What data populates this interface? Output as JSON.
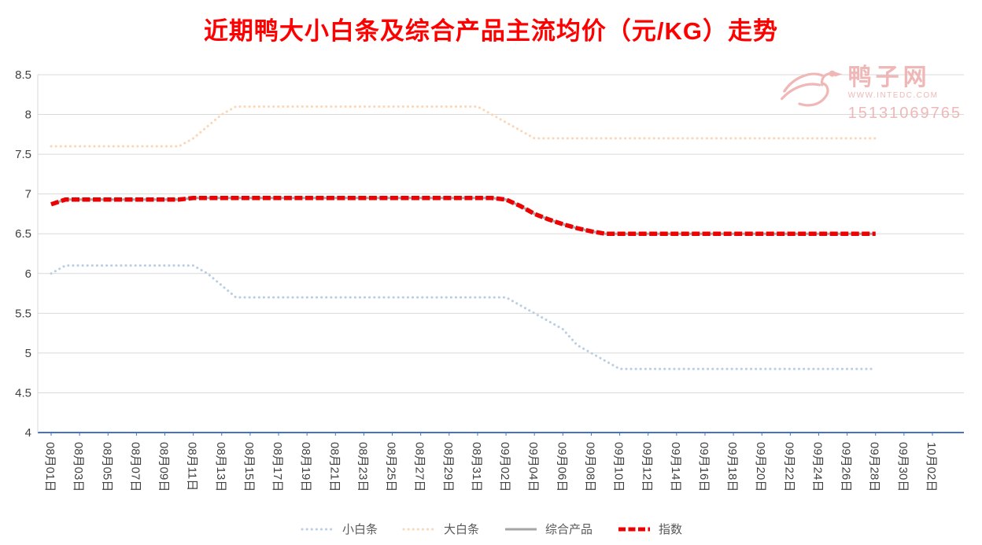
{
  "chart_data": {
    "type": "line",
    "title": "近期鸭大小白条及综合产品主流均价（元/KG）走势",
    "title_color": "#ff0000",
    "ylim": [
      4,
      8.5
    ],
    "ytick_step": 0.5,
    "y_tick_labels": [
      "4",
      "4.5",
      "5",
      "5.5",
      "6",
      "6.5",
      "7",
      "7.5",
      "8",
      "8.5"
    ],
    "x_tick_labels": [
      "08月01日",
      "08月03日",
      "08月05日",
      "08月07日",
      "08月09日",
      "08月11日",
      "08月13日",
      "08月15日",
      "08月17日",
      "08月19日",
      "08月21日",
      "08月23日",
      "08月25日",
      "08月27日",
      "08月29日",
      "08月31日",
      "09月02日",
      "09月04日",
      "09月06日",
      "09月08日",
      "09月10日",
      "09月12日",
      "09月14日",
      "09月16日",
      "09月18日",
      "09月20日",
      "09月22日",
      "09月24日",
      "09月26日",
      "09月28日",
      "09月30日",
      "10月02日"
    ],
    "days_per_tick": 2,
    "total_days": 63,
    "grid": true,
    "legend_position": "bottom",
    "axis_color": "#4472c4",
    "grid_color": "#d9d9d9",
    "series": [
      {
        "name": "小白条",
        "color": "#b9cde4",
        "style": "dotted",
        "values": [
          6,
          6.1,
          6.1,
          6.1,
          6.1,
          6.1,
          6.1,
          6.1,
          6.1,
          6.1,
          6.1,
          6,
          5.85,
          5.7,
          5.7,
          5.7,
          5.7,
          5.7,
          5.7,
          5.7,
          5.7,
          5.7,
          5.7,
          5.7,
          5.7,
          5.7,
          5.7,
          5.7,
          5.7,
          5.7,
          5.7,
          5.7,
          5.7,
          5.6,
          5.5,
          5.4,
          5.3,
          5.1,
          5,
          4.9,
          4.8,
          4.8,
          4.8,
          4.8,
          4.8,
          4.8,
          4.8,
          4.8,
          4.8,
          4.8,
          4.8,
          4.8,
          4.8,
          4.8,
          4.8,
          4.8,
          4.8,
          4.8,
          4.8
        ]
      },
      {
        "name": "大白条",
        "color": "#fbd6b6",
        "style": "dotted",
        "values": [
          7.6,
          7.6,
          7.6,
          7.6,
          7.6,
          7.6,
          7.6,
          7.6,
          7.6,
          7.6,
          7.7,
          7.85,
          8,
          8.1,
          8.1,
          8.1,
          8.1,
          8.1,
          8.1,
          8.1,
          8.1,
          8.1,
          8.1,
          8.1,
          8.1,
          8.1,
          8.1,
          8.1,
          8.1,
          8.1,
          8.1,
          8,
          7.9,
          7.8,
          7.7,
          7.7,
          7.7,
          7.7,
          7.7,
          7.7,
          7.7,
          7.7,
          7.7,
          7.7,
          7.7,
          7.7,
          7.7,
          7.7,
          7.7,
          7.7,
          7.7,
          7.7,
          7.7,
          7.7,
          7.7,
          7.7,
          7.7,
          7.7,
          7.7
        ]
      },
      {
        "name": "综合产品",
        "color": "#a6a6a6",
        "style": "solid",
        "values": [
          6.87,
          6.93,
          6.93,
          6.93,
          6.93,
          6.93,
          6.93,
          6.93,
          6.93,
          6.93,
          6.95,
          6.95,
          6.95,
          6.95,
          6.95,
          6.95,
          6.95,
          6.95,
          6.95,
          6.95,
          6.95,
          6.95,
          6.95,
          6.95,
          6.95,
          6.95,
          6.95,
          6.95,
          6.95,
          6.95,
          6.95,
          6.95,
          6.93,
          6.85,
          6.75,
          6.68,
          6.62,
          6.57,
          6.53,
          6.5,
          6.5,
          6.5,
          6.5,
          6.5,
          6.5,
          6.5,
          6.5,
          6.5,
          6.5,
          6.5,
          6.5,
          6.5,
          6.5,
          6.5,
          6.5,
          6.5,
          6.5,
          6.5,
          6.5
        ]
      },
      {
        "name": "指数",
        "color": "#ee0000",
        "style": "dashed",
        "values": [
          6.87,
          6.93,
          6.93,
          6.93,
          6.93,
          6.93,
          6.93,
          6.93,
          6.93,
          6.93,
          6.95,
          6.95,
          6.95,
          6.95,
          6.95,
          6.95,
          6.95,
          6.95,
          6.95,
          6.95,
          6.95,
          6.95,
          6.95,
          6.95,
          6.95,
          6.95,
          6.95,
          6.95,
          6.95,
          6.95,
          6.95,
          6.95,
          6.93,
          6.85,
          6.75,
          6.68,
          6.62,
          6.57,
          6.53,
          6.5,
          6.5,
          6.5,
          6.5,
          6.5,
          6.5,
          6.5,
          6.5,
          6.5,
          6.5,
          6.5,
          6.5,
          6.5,
          6.5,
          6.5,
          6.5,
          6.5,
          6.5,
          6.5,
          6.5
        ]
      }
    ]
  },
  "watermark": {
    "brand": "鸭子网",
    "site": "WWW.INTEDC.COM",
    "phone": "15131069765"
  }
}
